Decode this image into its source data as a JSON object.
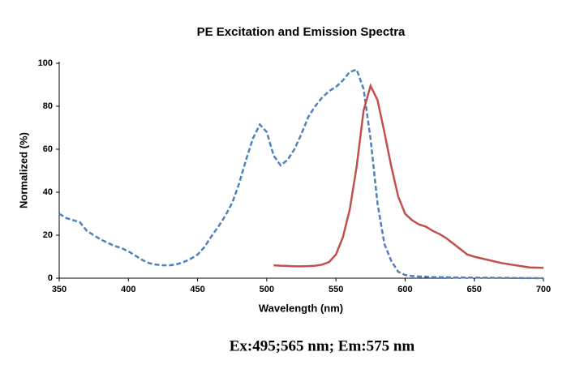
{
  "chart_data": {
    "type": "line",
    "title": "PE Excitation and Emission Spectra",
    "x_label": "Wavelength (nm)",
    "y_label": "Normalized (%)",
    "caption": "Ex:495;565 nm; Em:575 nm",
    "xlim": [
      350,
      700
    ],
    "xticks": [
      350,
      400,
      450,
      500,
      550,
      600,
      650,
      700
    ],
    "ylim": [
      0,
      100
    ],
    "yticks": [
      0,
      20,
      40,
      60,
      80,
      100
    ],
    "grid": false,
    "series": [
      {
        "color": "#4f81bd",
        "dashed": true,
        "x": [
          350,
          355,
          360,
          365,
          370,
          375,
          380,
          385,
          390,
          395,
          400,
          405,
          410,
          415,
          420,
          425,
          430,
          435,
          440,
          445,
          450,
          455,
          460,
          465,
          470,
          475,
          480,
          485,
          490,
          495,
          500,
          505,
          510,
          515,
          520,
          525,
          530,
          535,
          540,
          545,
          550,
          555,
          560,
          565,
          570,
          575,
          580,
          585,
          590,
          595,
          600,
          605,
          610,
          620,
          640,
          660,
          680,
          700
        ],
        "values": [
          30,
          28,
          27,
          26,
          22,
          20,
          18,
          16.5,
          15,
          14,
          12.5,
          10.5,
          8.5,
          7,
          6.3,
          6,
          6,
          6.5,
          7.5,
          9,
          11,
          14.5,
          19.5,
          24,
          29,
          35,
          44,
          55,
          65,
          71.5,
          68,
          57,
          52.5,
          55,
          60,
          67,
          75,
          80,
          84,
          87,
          89,
          92,
          96,
          97,
          88,
          65,
          35,
          16,
          8,
          3,
          1.5,
          1,
          0.8,
          0.5,
          0.3,
          0.2,
          0.1,
          0
        ]
      },
      {
        "color": "#c0504d",
        "dashed": false,
        "x": [
          505,
          510,
          515,
          520,
          525,
          530,
          535,
          540,
          545,
          550,
          555,
          560,
          565,
          570,
          575,
          580,
          585,
          590,
          595,
          600,
          605,
          610,
          615,
          620,
          625,
          630,
          635,
          640,
          645,
          650,
          660,
          670,
          680,
          690,
          700
        ],
        "values": [
          6,
          5.8,
          5.7,
          5.5,
          5.5,
          5.6,
          5.8,
          6.3,
          7.5,
          11,
          19,
          32,
          52,
          78,
          89.5,
          83,
          68,
          52,
          38,
          30,
          27,
          25,
          24,
          22,
          20.5,
          18.5,
          16,
          13.5,
          11,
          10,
          8.5,
          7,
          6,
          5,
          4.8
        ]
      }
    ]
  }
}
